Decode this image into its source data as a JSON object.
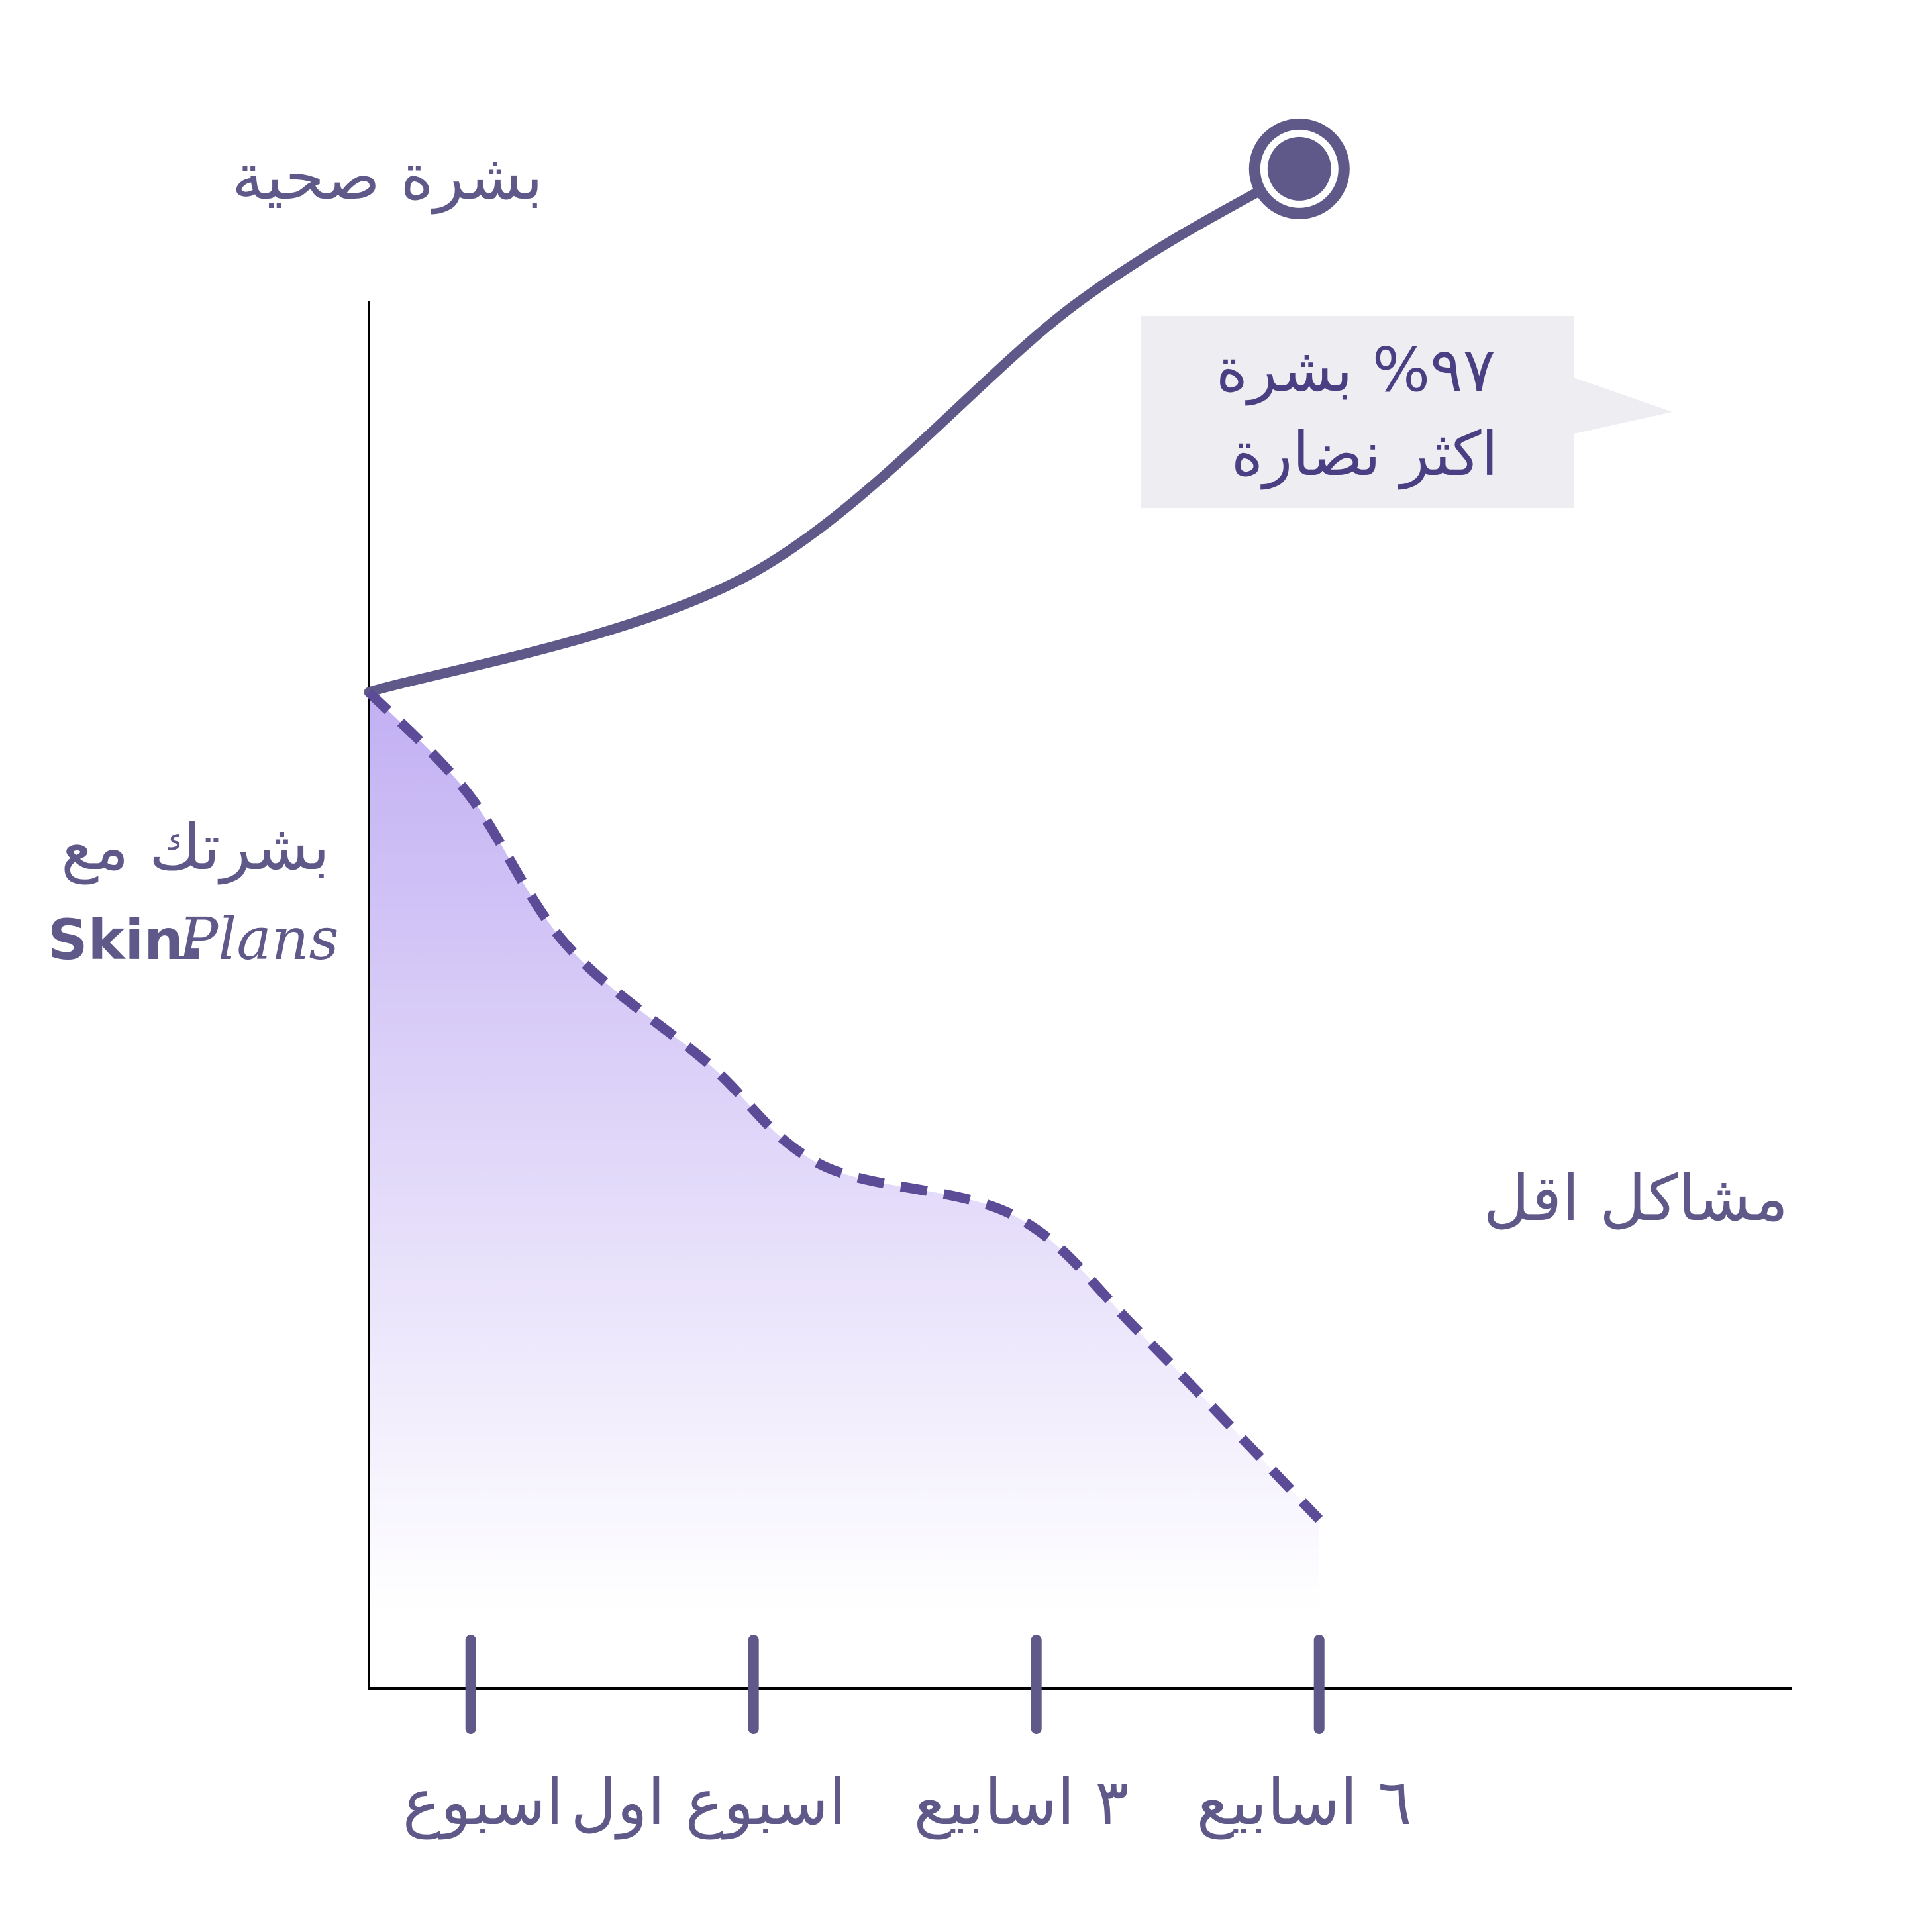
{
  "chart_data": {
    "type": "line",
    "title": "",
    "ylabel": "بشرة صحية",
    "xlabel": "",
    "start_label": "بشرتك مع",
    "brand": {
      "skin": "Skin.",
      "plans": "Plans"
    },
    "categories": [
      "اسبوع",
      "اسبوع اول",
      "٣ اسابيع",
      "٦ اسابيع"
    ],
    "x_domain": [
      0,
      6
    ],
    "tick_positions": [
      0.36,
      1.36,
      2.36,
      3.36
    ],
    "y_domain": [
      0,
      100
    ],
    "grid": false,
    "series": [
      {
        "style": "solid",
        "color": "#5e5989",
        "points": [
          [
            0,
            59
          ],
          [
            1.35,
            66
          ],
          [
            2.5,
            82
          ],
          [
            3.29,
            90
          ]
        ],
        "end_marker": true
      },
      {
        "name": "مشاكل اقل",
        "style": "dashed",
        "area_fill": true,
        "color": "#5c4c98",
        "points": [
          [
            0,
            59
          ],
          [
            0.35,
            53
          ],
          [
            0.7,
            44
          ],
          [
            1.2,
            37
          ],
          [
            1.6,
            31
          ],
          [
            2.28,
            28
          ],
          [
            2.73,
            21
          ],
          [
            3.36,
            10
          ]
        ]
      }
    ],
    "annotation": {
      "line1": "٩٧% بشرة",
      "line2": "اكثر نضارة",
      "series": 0,
      "point": "end"
    }
  }
}
